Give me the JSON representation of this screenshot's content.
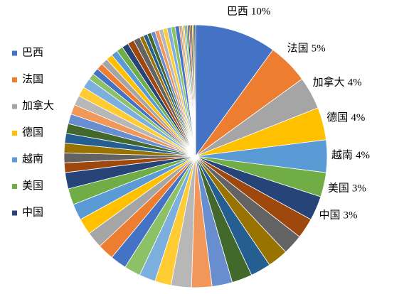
{
  "chart_data": {
    "type": "pie",
    "categories": [
      "巴西",
      "法国",
      "加拿大",
      "德国",
      "越南",
      "美国",
      "中国",
      null,
      null,
      null,
      null,
      null,
      null,
      null,
      null,
      null,
      null,
      null,
      null,
      null,
      null,
      null,
      null,
      null,
      null,
      null,
      null,
      null,
      null,
      null,
      null,
      null,
      null,
      null,
      null,
      null,
      null,
      null,
      null,
      null,
      null,
      null,
      null,
      null,
      null,
      null,
      null,
      null,
      null,
      null,
      null,
      null,
      null,
      null,
      null,
      null,
      null,
      null,
      null,
      null,
      null,
      null,
      null,
      null,
      null
    ],
    "values": [
      10,
      5,
      4,
      4,
      4,
      3,
      3,
      2.5,
      2.5,
      2.5,
      2.5,
      2.5,
      2.5,
      2.5,
      2.5,
      2,
      2,
      2,
      2,
      2,
      2,
      2,
      2,
      2,
      2,
      1.2,
      1.2,
      1.2,
      1.2,
      1.2,
      1.2,
      1.2,
      1.2,
      1.2,
      1.2,
      0.8,
      0.8,
      0.8,
      0.8,
      0.8,
      0.8,
      0.8,
      0.8,
      0.8,
      0.8,
      0.5,
      0.5,
      0.5,
      0.5,
      0.5,
      0.5,
      0.5,
      0.5,
      0.5,
      0.5,
      0.2,
      0.2,
      0.2,
      0.2,
      0.2,
      0.2,
      0.2,
      0.2,
      0.2,
      0.2
    ],
    "value_labels": [
      "10%",
      "5%",
      "4%",
      "4%",
      "4%",
      "3%",
      "3%",
      null,
      null,
      null,
      null,
      null,
      null,
      null,
      null,
      null,
      null,
      null,
      null,
      null,
      null,
      null,
      null,
      null,
      null,
      null,
      null,
      null,
      null,
      null,
      null,
      null,
      null,
      null,
      null,
      null,
      null,
      null,
      null,
      null,
      null,
      null,
      null,
      null,
      null,
      null,
      null,
      null,
      null,
      null,
      null,
      null,
      null,
      null,
      null,
      null,
      null,
      null,
      null,
      null,
      null,
      null,
      null,
      null,
      null
    ],
    "colors": [
      "#4472c4",
      "#ed7d31",
      "#a5a5a5",
      "#ffc000",
      "#5b9bd5",
      "#70ad47",
      "#264478",
      "#9e480e",
      "#636363",
      "#997300",
      "#255e91",
      "#43682b",
      "#698ed0",
      "#f1975a",
      "#b7b7b7",
      "#ffcd33",
      "#7cafdd",
      "#8cc168"
    ],
    "legend": "left"
  }
}
